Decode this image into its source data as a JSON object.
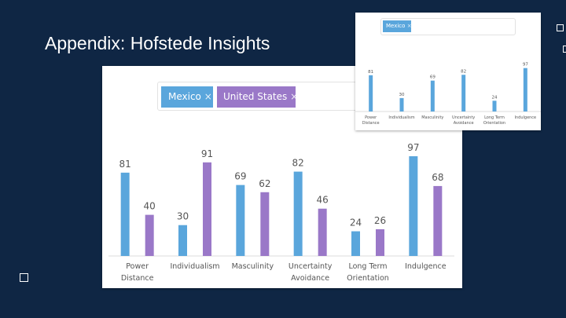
{
  "slide": {
    "title": "Appendix: Hofstede Insights"
  },
  "filter": {
    "tags": [
      {
        "label": "Mexico",
        "remove": "×",
        "color": "#5aa6dc"
      },
      {
        "label": "United States",
        "remove": "×",
        "color": "#9a78c8"
      }
    ]
  },
  "chart_data": [
    {
      "type": "bar",
      "categories": [
        [
          "Power",
          "Distance"
        ],
        [
          "Individualism"
        ],
        [
          "Masculinity"
        ],
        [
          "Uncertainty",
          "Avoidance"
        ],
        [
          "Long Term",
          "Orientation"
        ],
        [
          "Indulgence"
        ]
      ],
      "series": [
        {
          "name": "Mexico",
          "color": "#5aa6dc",
          "values": [
            81,
            30,
            69,
            82,
            24,
            97
          ]
        },
        {
          "name": "United States",
          "color": "#9a78c8",
          "values": [
            40,
            91,
            62,
            46,
            26,
            68
          ]
        }
      ],
      "ylim": [
        0,
        100
      ],
      "grid": false
    },
    {
      "type": "bar",
      "categories": [
        [
          "Power",
          "Distance"
        ],
        [
          "Individualism"
        ],
        [
          "Masculinity"
        ],
        [
          "Uncertainty",
          "Avoidance"
        ],
        [
          "Long Term",
          "Orientation"
        ],
        [
          "Indulgence"
        ]
      ],
      "series": [
        {
          "name": "Mexico",
          "color": "#5aa6dc",
          "values": [
            81,
            30,
            69,
            82,
            24,
            97
          ]
        }
      ],
      "ylim": [
        0,
        100
      ],
      "grid": false
    }
  ]
}
